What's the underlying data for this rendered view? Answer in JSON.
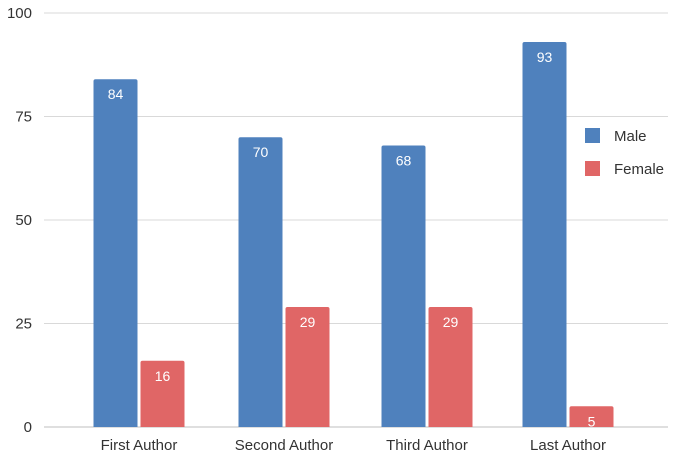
{
  "chart_data": {
    "type": "bar",
    "categories": [
      "First Author",
      "Second Author",
      "Third Author",
      "Last Author"
    ],
    "series": [
      {
        "name": "Male",
        "values": [
          84,
          70,
          68,
          93
        ],
        "color": "#4f81bd"
      },
      {
        "name": "Female",
        "values": [
          16,
          29,
          29,
          5
        ],
        "color": "#e06666"
      }
    ],
    "ylim": [
      0,
      100
    ],
    "yticks": [
      0,
      25,
      50,
      75,
      100
    ],
    "grid": true,
    "legend_position": "right",
    "data_labels": true
  }
}
